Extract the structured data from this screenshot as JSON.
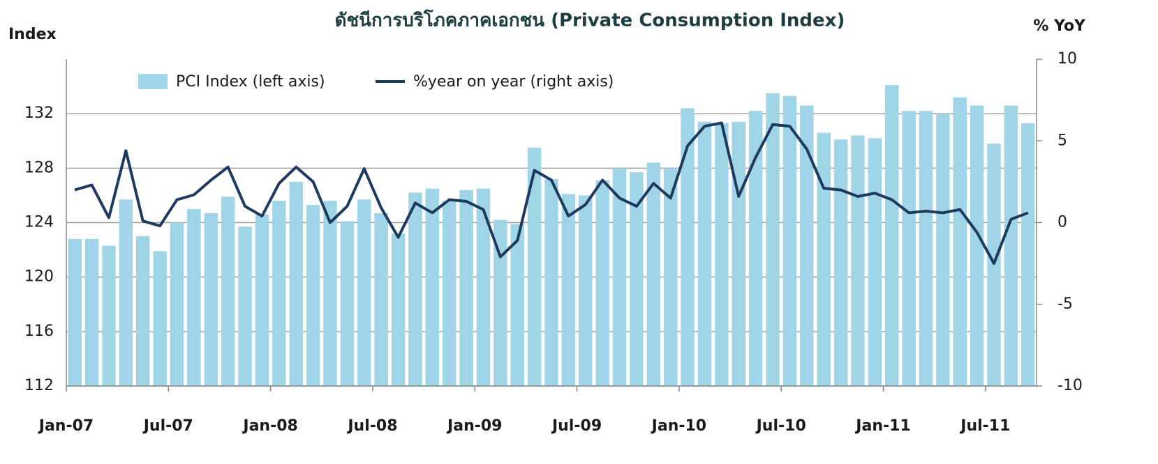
{
  "chart_data": {
    "type": "bar_line",
    "title": "ดัชนีการบริโภคภาคเอกชน (Private Consumption Index)",
    "y_label": "Index",
    "y2_label": "% YoY",
    "categories": [
      "Jan-07",
      null,
      null,
      null,
      null,
      null,
      "Jul-07",
      null,
      null,
      null,
      null,
      null,
      "Jan-08",
      null,
      null,
      null,
      null,
      null,
      "Jul-08",
      null,
      null,
      null,
      null,
      null,
      "Jan-09",
      null,
      null,
      null,
      null,
      null,
      "Jul-09",
      null,
      null,
      null,
      null,
      null,
      "Jan-10",
      null,
      null,
      null,
      null,
      null,
      "Jul-10",
      null,
      null,
      null,
      null,
      null,
      "Jan-11",
      null,
      null,
      null,
      null,
      null,
      "Jul-11",
      null,
      null
    ],
    "series": [
      {
        "name": "PCI Index (left axis)",
        "type": "bar",
        "color": "#9fd5e6",
        "values": [
          122.8,
          122.8,
          122.3,
          125.7,
          123.0,
          121.9,
          124.0,
          125.0,
          124.7,
          125.9,
          123.7,
          124.6,
          125.6,
          127.0,
          125.3,
          125.6,
          124.1,
          125.7,
          124.7,
          123.2,
          126.2,
          126.5,
          125.6,
          126.4,
          126.5,
          124.2,
          123.9,
          129.5,
          127.2,
          126.1,
          126.0,
          127.1,
          128.0,
          127.7,
          128.4,
          128.0,
          132.4,
          131.4,
          131.3,
          131.4,
          132.2,
          133.5,
          133.3,
          132.6,
          130.6,
          130.1,
          130.4,
          130.2,
          134.1,
          132.2,
          132.2,
          132.0,
          133.2,
          132.6,
          129.8,
          132.6,
          131.3
        ]
      },
      {
        "name": "%year on year (right axis)",
        "type": "line",
        "axis": "y2",
        "color": "#1f3a5f",
        "values": [
          2.0,
          2.3,
          0.3,
          4.4,
          0.1,
          -0.2,
          1.4,
          1.7,
          2.6,
          3.4,
          1.0,
          0.4,
          2.4,
          3.4,
          2.5,
          0.0,
          1.0,
          3.3,
          0.9,
          -0.9,
          1.2,
          0.6,
          1.4,
          1.3,
          0.8,
          -2.1,
          -1.1,
          3.2,
          2.6,
          0.4,
          1.1,
          2.6,
          1.5,
          1.0,
          2.4,
          1.5,
          4.7,
          5.9,
          6.1,
          1.6,
          4.0,
          6.0,
          5.9,
          4.5,
          2.1,
          2.0,
          1.6,
          1.8,
          1.4,
          0.6,
          0.7,
          0.6,
          0.8,
          -0.6,
          -2.5,
          0.2,
          0.6
        ]
      }
    ],
    "ylim": [
      112,
      136
    ],
    "yticks": [
      112,
      116,
      120,
      124,
      128,
      132
    ],
    "y2lim": [
      -10,
      10
    ],
    "y2ticks": [
      -10,
      -5,
      0,
      5,
      10
    ],
    "grid": true,
    "legend": "top-left"
  }
}
